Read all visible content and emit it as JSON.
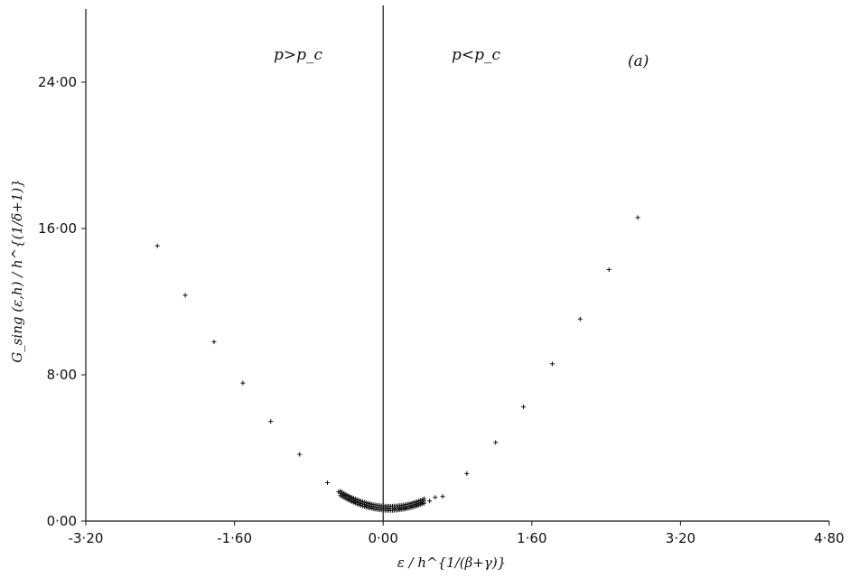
{
  "chart_data": {
    "type": "scatter",
    "title": "",
    "xlabel": "ε / h^{1/(β+γ)}",
    "ylabel": "G_sing (ε,h) / h^{(1/δ+1)}",
    "xlim": [
      -3.2,
      4.8
    ],
    "ylim": [
      0,
      28
    ],
    "grid": false,
    "x_ticks": [
      "-3·20",
      "-1·60",
      "0·00",
      "1·60",
      "3·20",
      "4·80"
    ],
    "y_ticks": [
      "0·00",
      "8·00",
      "16·00",
      "24·00"
    ],
    "annotations": [
      "p>p_c",
      "p<p_c",
      "(a)"
    ],
    "series": [
      {
        "marker": "+",
        "x": [
          -2.43,
          -2.13,
          -1.82,
          -1.51,
          -1.21,
          -0.9,
          -0.6,
          -0.48,
          -0.42,
          -0.36,
          -0.3,
          -0.24,
          -0.18,
          -0.12,
          -0.06,
          0.0,
          0.06,
          0.12,
          0.18,
          0.24,
          0.3,
          0.36,
          0.42,
          0.5,
          0.56,
          0.64,
          0.9,
          1.21,
          1.51,
          1.82,
          2.12,
          2.43,
          2.74
        ],
        "y": [
          15.05,
          12.35,
          9.8,
          7.55,
          5.45,
          3.65,
          2.1,
          1.6,
          1.4,
          1.22,
          1.06,
          0.95,
          0.85,
          0.78,
          0.73,
          0.7,
          0.68,
          0.67,
          0.68,
          0.72,
          0.8,
          0.88,
          0.98,
          1.1,
          1.3,
          1.35,
          2.6,
          4.3,
          6.25,
          8.6,
          11.05,
          13.75,
          16.6
        ]
      }
    ]
  }
}
